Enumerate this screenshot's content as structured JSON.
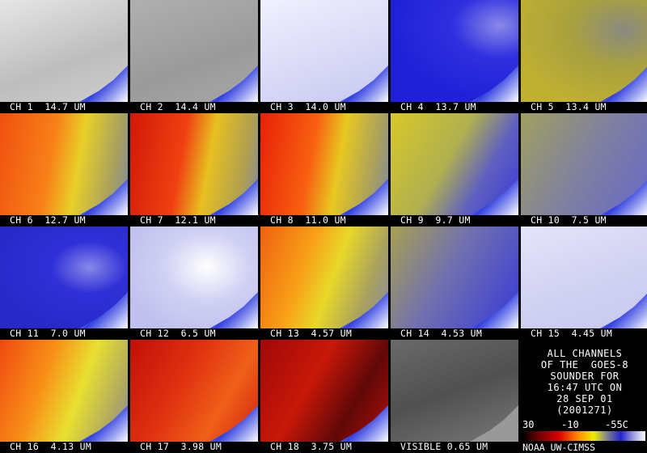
{
  "tiles": [
    "CH 1  14.7 UM",
    "CH 2  14.4 UM",
    "CH 3  14.0 UM",
    "CH 4  13.7 UM",
    "CH 5  13.4 UM",
    "CH 6  12.7 UM",
    "CH 7  12.1 UM",
    "CH 8  11.0 UM",
    "CH 9  9.7 UM",
    "CH 10  7.5 UM",
    "CH 11  7.0 UM",
    "CH 12  6.5 UM",
    "CH 13  4.57 UM",
    "CH 14  4.53 UM",
    "CH 15  4.45 UM",
    "CH 16  4.13 UM",
    "CH 17  3.98 UM",
    "CH 18  3.75 UM",
    "VISIBLE 0.65 UM"
  ],
  "info": [
    "ALL CHANNELS",
    "OF THE  GOES-8",
    "SOUNDER FOR",
    "16:47 UTC ON",
    "28 SEP 01",
    "(2001271)"
  ],
  "scale": {
    "labels": [
      "30",
      "-10",
      "-55C"
    ]
  },
  "credit": "NOAA UW-CIMSS"
}
